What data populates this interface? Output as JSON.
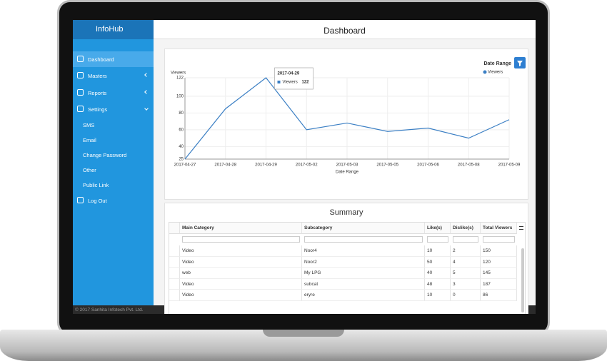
{
  "brand": "InfoHub",
  "header": {
    "title": "Dashboard"
  },
  "menu": [
    "Dashboard",
    "Masters",
    "Reports",
    "Settings"
  ],
  "settings_items": [
    "SMS",
    "Email",
    "Change Password",
    "Other",
    "Public Link"
  ],
  "logout": "Log Out",
  "footer": "© 2017 Sanhita Infotech Pvt. Ltd.",
  "filter_label": "Date Range",
  "chart_data": {
    "type": "line",
    "y_label": "Viewers",
    "x_label": "Date Range",
    "categories": [
      "2017-04-27",
      "2017-04-28",
      "2017-04-29",
      "2017-05-02",
      "2017-05-03",
      "2017-05-05",
      "2017-05-06",
      "2017-05-08",
      "2017-05-09"
    ],
    "series": [
      {
        "name": "Viewers",
        "color": "#3b7fc4",
        "values": [
          25,
          85,
          122,
          60,
          68,
          58,
          62,
          50,
          72
        ]
      }
    ],
    "ylim": [
      25,
      122
    ],
    "yticks": [
      25,
      40,
      60,
      80,
      100,
      122
    ],
    "grid": true,
    "legend": "top-right",
    "tooltip_index": 2
  },
  "table": {
    "title": "Summary",
    "columns": [
      "Main Category",
      "Subcategory",
      "Like(s)",
      "Dislike(s)",
      "Total Viewers"
    ],
    "rows": [
      [
        "Video",
        "Noor4",
        10,
        2,
        150
      ],
      [
        "Video",
        "Noor2",
        50,
        4,
        120
      ],
      [
        "web",
        "My LPG",
        40,
        5,
        145
      ],
      [
        "Video",
        "subcat",
        48,
        3,
        187
      ],
      [
        "Video",
        "eryre",
        10,
        0,
        86
      ]
    ]
  }
}
